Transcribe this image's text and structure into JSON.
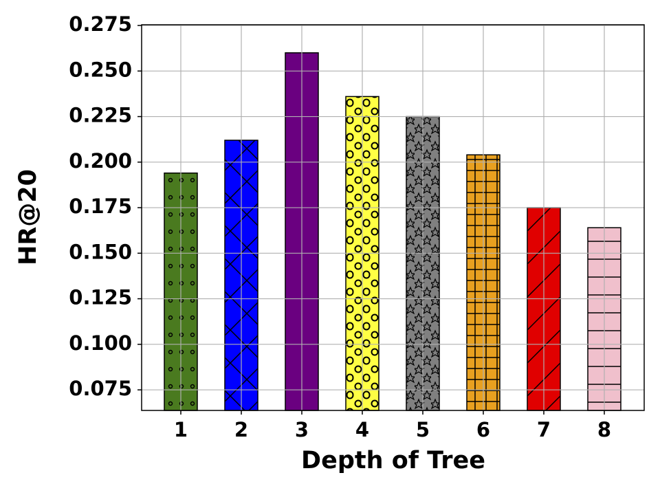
{
  "chart_data": {
    "type": "bar",
    "x_label": "Depth of Tree",
    "y_label": "HR@20",
    "categories": [
      "1",
      "2",
      "3",
      "4",
      "5",
      "6",
      "7",
      "8"
    ],
    "values": [
      0.194,
      0.212,
      0.26,
      0.236,
      0.225,
      0.204,
      0.175,
      0.164
    ],
    "colors": [
      "#4a7a1f",
      "#0000ff",
      "#6a0080",
      "#ffff44",
      "#808080",
      "#e8a020",
      "#e00000",
      "#f0c0cc"
    ],
    "hatches": [
      "dots",
      "cross",
      "none",
      "circles",
      "stars",
      "grid",
      "diagonal",
      "horizontal"
    ],
    "ylim": [
      0.0637,
      0.2754
    ],
    "yticks": [
      0.075,
      {
        "value": 0.1,
        "label": "0.100"
      },
      0.125,
      {
        "value": 0.15,
        "label": "0.150"
      },
      0.175,
      {
        "value": 0.2,
        "label": "0.200"
      },
      0.225,
      {
        "value": 0.25,
        "label": "0.250"
      },
      0.275
    ],
    "grid": true
  }
}
